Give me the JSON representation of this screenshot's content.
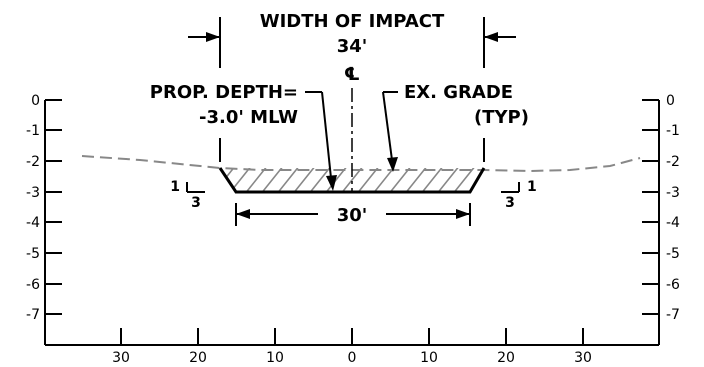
{
  "section": {
    "width_of_impact_label": "WIDTH OF IMPACT",
    "width_of_impact_value": "34'",
    "centerline_symbol": "℄",
    "prop_depth_line1": "PROP. DEPTH=",
    "prop_depth_line2": "-3.0' MLW",
    "ex_grade_line1": "EX. GRADE",
    "ex_grade_line2": "(TYP)",
    "bottom_width": "30'",
    "slope_left_rise": "1",
    "slope_left_run": "3",
    "slope_right_rise": "1",
    "slope_right_run": "3"
  },
  "axes": {
    "y_ticks": [
      "0",
      "-1",
      "-2",
      "-3",
      "-4",
      "-5",
      "-6",
      "-7"
    ],
    "x_ticks": [
      "30",
      "20",
      "10",
      "0",
      "10",
      "20",
      "30"
    ]
  },
  "colors": {
    "line": "#000000",
    "existing_grade": "#888888",
    "hatch": "#888888"
  }
}
